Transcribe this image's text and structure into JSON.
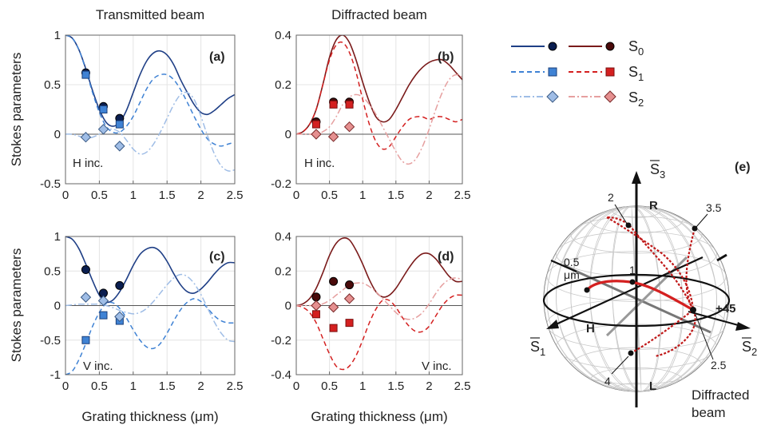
{
  "columns": {
    "left": "Transmitted beam",
    "right": "Diffracted beam"
  },
  "ylabel": "Stokes parameters",
  "xlabel": "Grating thickness (μm)",
  "legend": {
    "s0": "S",
    "s0sub": "0",
    "s1": "S",
    "s1sub": "1",
    "s2": "S",
    "s2sub": "2"
  },
  "colors": {
    "trans_s0": "#1f3f86",
    "trans_s1": "#3f82d4",
    "trans_s2": "#9fbde6",
    "diff_s0": "#7a1a1a",
    "diff_s1": "#d42020",
    "diff_s2": "#e6a0a0",
    "marker_dark_blue": "#0a1e50",
    "marker_dark_red": "#4a0a0a"
  },
  "chart_data": [
    {
      "panel": "a",
      "type": "line",
      "annotation": "H inc.",
      "xlim": [
        0,
        2.5
      ],
      "ylim": [
        -0.5,
        1
      ],
      "xticks": [
        "0",
        "0.5",
        "1",
        "1.5",
        "2",
        "2.5"
      ],
      "xtick_values": [
        0,
        0.5,
        1,
        1.5,
        2,
        2.5
      ],
      "yticks": [
        "1",
        "0.5",
        "0",
        "-0.5"
      ],
      "ytick_values": [
        1,
        0.5,
        0,
        -0.5
      ],
      "x": [
        0,
        0.1,
        0.2,
        0.3,
        0.4,
        0.5,
        0.6,
        0.7,
        0.8,
        0.9,
        1.0,
        1.1,
        1.2,
        1.3,
        1.4,
        1.5,
        1.6,
        1.7,
        1.8,
        1.9,
        2.0,
        2.1,
        2.2,
        2.3,
        2.4,
        2.5
      ],
      "series": [
        {
          "key": "s0",
          "values": [
            1,
            0.97,
            0.85,
            0.66,
            0.44,
            0.25,
            0.12,
            0.08,
            0.12,
            0.24,
            0.42,
            0.6,
            0.74,
            0.82,
            0.84,
            0.8,
            0.7,
            0.55,
            0.42,
            0.3,
            0.22,
            0.2,
            0.24,
            0.3,
            0.36,
            0.4
          ]
        },
        {
          "key": "s1",
          "values": [
            1,
            0.97,
            0.85,
            0.65,
            0.42,
            0.22,
            0.08,
            0.02,
            0.02,
            0.08,
            0.18,
            0.32,
            0.46,
            0.56,
            0.6,
            0.6,
            0.55,
            0.45,
            0.32,
            0.18,
            0.05,
            -0.05,
            -0.1,
            -0.12,
            -0.1,
            -0.08
          ]
        },
        {
          "key": "s2",
          "values": [
            0,
            0,
            -0.02,
            -0.04,
            -0.03,
            0,
            0.04,
            0.05,
            0.02,
            -0.06,
            -0.15,
            -0.2,
            -0.18,
            -0.1,
            0.02,
            0.16,
            0.3,
            0.4,
            0.42,
            0.35,
            0.18,
            -0.02,
            -0.2,
            -0.32,
            -0.37,
            -0.36
          ]
        }
      ],
      "markers": [
        {
          "key": "s0",
          "x": [
            0.3,
            0.56,
            0.8
          ],
          "y": [
            0.62,
            0.28,
            0.16
          ]
        },
        {
          "key": "s1",
          "x": [
            0.3,
            0.56,
            0.8
          ],
          "y": [
            0.6,
            0.25,
            0.1
          ]
        },
        {
          "key": "s2",
          "x": [
            0.3,
            0.56,
            0.8
          ],
          "y": [
            -0.03,
            0.05,
            -0.12
          ]
        }
      ]
    },
    {
      "panel": "b",
      "type": "line",
      "annotation": "H inc.",
      "xlim": [
        0,
        2.5
      ],
      "ylim": [
        -0.2,
        0.4
      ],
      "xticks": [
        "0",
        "0.5",
        "1",
        "1.5",
        "2",
        "2.5"
      ],
      "xtick_values": [
        0,
        0.5,
        1,
        1.5,
        2,
        2.5
      ],
      "yticks": [
        "0.4",
        "0.2",
        "0",
        "-0.2"
      ],
      "ytick_values": [
        0.4,
        0.2,
        0,
        -0.2
      ],
      "x": [
        0,
        0.1,
        0.2,
        0.3,
        0.4,
        0.5,
        0.6,
        0.7,
        0.8,
        0.9,
        1.0,
        1.1,
        1.2,
        1.3,
        1.4,
        1.5,
        1.6,
        1.7,
        1.8,
        1.9,
        2.0,
        2.1,
        2.2,
        2.3,
        2.4,
        2.5
      ],
      "series": [
        {
          "key": "s0",
          "values": [
            0,
            0.01,
            0.04,
            0.1,
            0.2,
            0.31,
            0.38,
            0.4,
            0.37,
            0.3,
            0.21,
            0.13,
            0.07,
            0.05,
            0.06,
            0.1,
            0.15,
            0.2,
            0.24,
            0.27,
            0.29,
            0.3,
            0.3,
            0.28,
            0.25,
            0.22
          ]
        },
        {
          "key": "s1",
          "values": [
            0,
            0.01,
            0.04,
            0.1,
            0.2,
            0.3,
            0.36,
            0.37,
            0.33,
            0.25,
            0.14,
            0.04,
            -0.03,
            -0.06,
            -0.05,
            -0.01,
            0.03,
            0.06,
            0.07,
            0.07,
            0.06,
            0.07,
            0.07,
            0.06,
            0.05,
            0.06
          ]
        },
        {
          "key": "s2",
          "values": [
            0,
            0,
            0,
            0,
            0.01,
            0.03,
            0.07,
            0.12,
            0.15,
            0.16,
            0.15,
            0.12,
            0.08,
            0.03,
            -0.02,
            -0.07,
            -0.11,
            -0.12,
            -0.1,
            -0.05,
            0.02,
            0.1,
            0.17,
            0.22,
            0.24,
            0.23
          ]
        }
      ],
      "markers": [
        {
          "key": "s0",
          "x": [
            0.3,
            0.56,
            0.8
          ],
          "y": [
            0.05,
            0.13,
            0.13
          ]
        },
        {
          "key": "s1",
          "x": [
            0.3,
            0.56,
            0.8
          ],
          "y": [
            0.04,
            0.12,
            0.12
          ]
        },
        {
          "key": "s2",
          "x": [
            0.3,
            0.56,
            0.8
          ],
          "y": [
            0.0,
            -0.01,
            0.03
          ]
        }
      ]
    },
    {
      "panel": "c",
      "type": "line",
      "annotation": "V inc.",
      "xlim": [
        0,
        2.5
      ],
      "ylim": [
        -1,
        1
      ],
      "xticks": [
        "0",
        "0.5",
        "1",
        "1.5",
        "2",
        "2.5"
      ],
      "xtick_values": [
        0,
        0.5,
        1,
        1.5,
        2,
        2.5
      ],
      "yticks": [
        "1",
        "0.5",
        "0",
        "-0.5",
        "-1"
      ],
      "ytick_values": [
        1,
        0.5,
        0,
        -0.5,
        -1
      ],
      "x": [
        0,
        0.1,
        0.2,
        0.3,
        0.4,
        0.5,
        0.6,
        0.7,
        0.8,
        0.9,
        1.0,
        1.1,
        1.2,
        1.3,
        1.4,
        1.5,
        1.6,
        1.7,
        1.8,
        1.9,
        2.0,
        2.1,
        2.2,
        2.3,
        2.4,
        2.5
      ],
      "series": [
        {
          "key": "s0",
          "values": [
            1,
            0.96,
            0.82,
            0.6,
            0.36,
            0.15,
            0.05,
            0.08,
            0.2,
            0.38,
            0.58,
            0.74,
            0.82,
            0.84,
            0.78,
            0.64,
            0.46,
            0.3,
            0.2,
            0.18,
            0.24,
            0.34,
            0.46,
            0.56,
            0.62,
            0.62
          ]
        },
        {
          "key": "s1",
          "values": [
            -1,
            -0.95,
            -0.78,
            -0.55,
            -0.3,
            -0.1,
            0.03,
            0.04,
            -0.04,
            -0.18,
            -0.35,
            -0.5,
            -0.6,
            -0.62,
            -0.55,
            -0.4,
            -0.22,
            -0.06,
            0.05,
            0.1,
            0.06,
            -0.04,
            -0.15,
            -0.22,
            -0.25,
            -0.25
          ]
        },
        {
          "key": "s2",
          "values": [
            0,
            0.01,
            0.02,
            0.02,
            0.02,
            0.02,
            0,
            -0.03,
            -0.07,
            -0.1,
            -0.12,
            -0.1,
            -0.04,
            0.06,
            0.18,
            0.3,
            0.4,
            0.45,
            0.42,
            0.32,
            0.16,
            -0.04,
            -0.24,
            -0.4,
            -0.5,
            -0.52
          ]
        }
      ],
      "markers": [
        {
          "key": "s0",
          "x": [
            0.3,
            0.56,
            0.8
          ],
          "y": [
            0.52,
            0.18,
            0.29
          ]
        },
        {
          "key": "s1",
          "x": [
            0.3,
            0.56,
            0.8
          ],
          "y": [
            -0.5,
            -0.14,
            -0.22
          ]
        },
        {
          "key": "s2",
          "x": [
            0.3,
            0.56,
            0.8
          ],
          "y": [
            0.12,
            0.07,
            -0.16
          ]
        }
      ]
    },
    {
      "panel": "d",
      "type": "line",
      "annotation": "V inc.",
      "xlim": [
        0,
        2.5
      ],
      "ylim": [
        -0.4,
        0.4
      ],
      "xticks": [
        "0",
        "0.5",
        "1",
        "1.5",
        "2",
        "2.5"
      ],
      "xtick_values": [
        0,
        0.5,
        1,
        1.5,
        2,
        2.5
      ],
      "yticks": [
        "0.4",
        "0.2",
        "0",
        "-0.2",
        "-0.4"
      ],
      "ytick_values": [
        0.4,
        0.2,
        0,
        -0.2,
        -0.4
      ],
      "x": [
        0,
        0.1,
        0.2,
        0.3,
        0.4,
        0.5,
        0.6,
        0.7,
        0.8,
        0.9,
        1.0,
        1.1,
        1.2,
        1.3,
        1.4,
        1.5,
        1.6,
        1.7,
        1.8,
        1.9,
        2.0,
        2.1,
        2.2,
        2.3,
        2.4,
        2.5
      ],
      "series": [
        {
          "key": "s0",
          "values": [
            0,
            0.01,
            0.04,
            0.1,
            0.19,
            0.29,
            0.36,
            0.39,
            0.38,
            0.32,
            0.24,
            0.15,
            0.08,
            0.05,
            0.06,
            0.1,
            0.16,
            0.22,
            0.27,
            0.3,
            0.3,
            0.27,
            0.22,
            0.17,
            0.14,
            0.14
          ]
        },
        {
          "key": "s1",
          "values": [
            0,
            -0.01,
            -0.04,
            -0.1,
            -0.19,
            -0.28,
            -0.35,
            -0.37,
            -0.35,
            -0.29,
            -0.2,
            -0.1,
            -0.02,
            0.03,
            0.03,
            -0.01,
            -0.07,
            -0.12,
            -0.15,
            -0.15,
            -0.12,
            -0.06,
            0,
            0.04,
            0.06,
            0.06
          ]
        },
        {
          "key": "s2",
          "values": [
            0,
            0,
            0,
            0,
            0.01,
            0.03,
            0.06,
            0.09,
            0.12,
            0.13,
            0.13,
            0.11,
            0.08,
            0.04,
            0,
            -0.04,
            -0.07,
            -0.08,
            -0.07,
            -0.04,
            0.01,
            0.07,
            0.12,
            0.15,
            0.16,
            0.15
          ]
        }
      ],
      "markers": [
        {
          "key": "s0",
          "x": [
            0.3,
            0.56,
            0.8
          ],
          "y": [
            0.05,
            0.14,
            0.12
          ]
        },
        {
          "key": "s1",
          "x": [
            0.3,
            0.56,
            0.8
          ],
          "y": [
            -0.05,
            -0.13,
            -0.1
          ]
        },
        {
          "key": "s2",
          "x": [
            0.3,
            0.56,
            0.8
          ],
          "y": [
            0.0,
            -0.01,
            0.04
          ]
        }
      ]
    }
  ],
  "sphere": {
    "panel": "e",
    "axes": {
      "s1": "S",
      "s1sub": "1",
      "s2": "S",
      "s2sub": "2",
      "s3": "S",
      "s3sub": "3"
    },
    "points": {
      "R": "R",
      "L": "L",
      "H": "H",
      "p45": "+45"
    },
    "thickness_labels": [
      "2",
      "3.5",
      "0.5",
      "μm",
      "1",
      "2.5",
      "4"
    ],
    "caption": [
      "Diffracted",
      "beam"
    ]
  }
}
